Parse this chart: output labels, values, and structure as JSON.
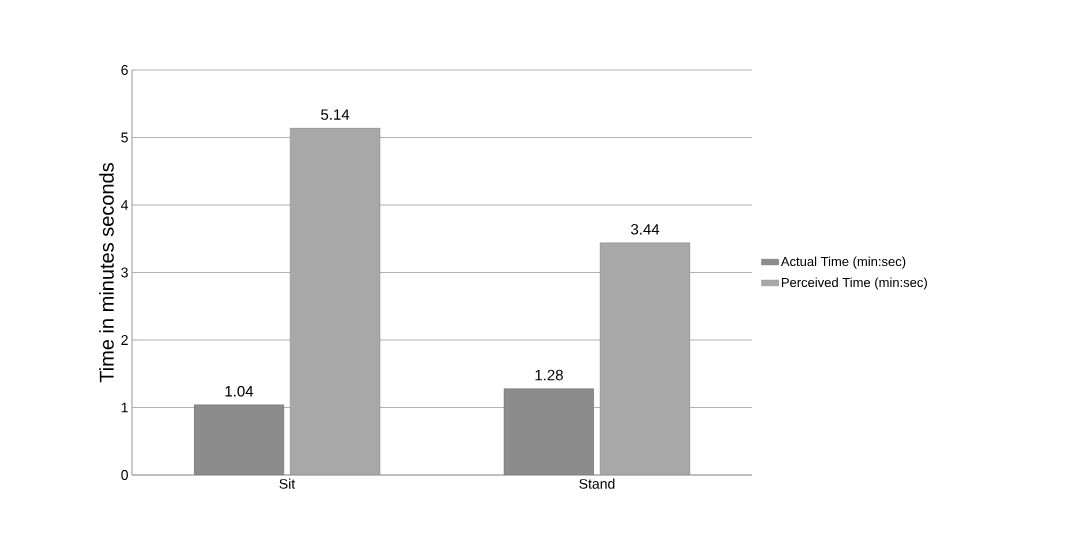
{
  "chart_data": {
    "type": "bar",
    "ylabel": "Time in minutes seconds",
    "categories": [
      "Sit",
      "Stand"
    ],
    "series": [
      {
        "name": "Actual Time (min:sec)",
        "color": "#8c8c8c",
        "values": [
          1.04,
          1.28
        ]
      },
      {
        "name": "Perceived Time (min:sec)",
        "color": "#a8a8a8",
        "values": [
          5.14,
          3.44
        ]
      }
    ],
    "ylim": [
      0,
      6
    ],
    "yticks": [
      0,
      1,
      2,
      3,
      4,
      5,
      6
    ],
    "grid": "y",
    "legend": "right",
    "data_labels": true
  }
}
